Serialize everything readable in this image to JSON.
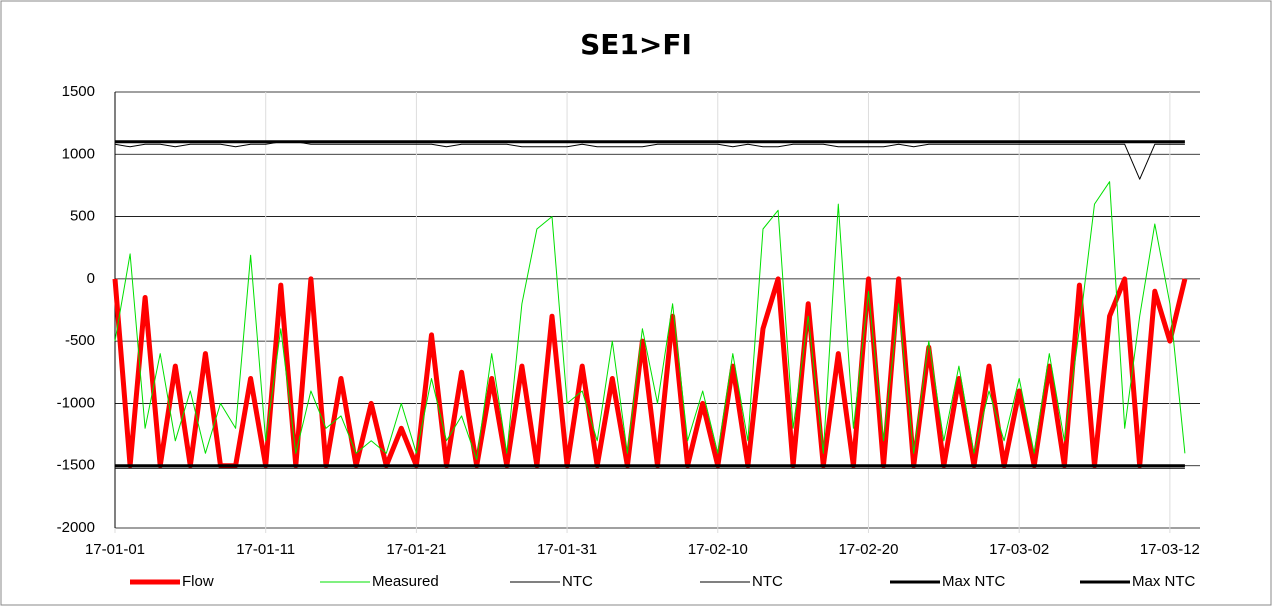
{
  "chart_data": {
    "type": "line",
    "title": "SE1>FI",
    "x": [
      "17-01-01",
      "17-01-02",
      "17-01-03",
      "17-01-04",
      "17-01-05",
      "17-01-06",
      "17-01-07",
      "17-01-08",
      "17-01-09",
      "17-01-10",
      "17-01-11",
      "17-01-12",
      "17-01-13",
      "17-01-14",
      "17-01-15",
      "17-01-16",
      "17-01-17",
      "17-01-18",
      "17-01-19",
      "17-01-20",
      "17-01-21",
      "17-01-22",
      "17-01-23",
      "17-01-24",
      "17-01-25",
      "17-01-26",
      "17-01-27",
      "17-01-28",
      "17-01-29",
      "17-01-30",
      "17-01-31",
      "17-02-01",
      "17-02-02",
      "17-02-03",
      "17-02-04",
      "17-02-05",
      "17-02-06",
      "17-02-07",
      "17-02-08",
      "17-02-09",
      "17-02-10",
      "17-02-11",
      "17-02-12",
      "17-02-13",
      "17-02-14",
      "17-02-15",
      "17-02-16",
      "17-02-17",
      "17-02-18",
      "17-02-19",
      "17-02-20",
      "17-02-21",
      "17-02-22",
      "17-02-23",
      "17-02-24",
      "17-02-25",
      "17-02-26",
      "17-02-27",
      "17-02-28",
      "17-03-01",
      "17-03-02",
      "17-03-03",
      "17-03-04",
      "17-03-05",
      "17-03-06",
      "17-03-07",
      "17-03-08",
      "17-03-09",
      "17-03-10",
      "17-03-11",
      "17-03-12",
      "17-03-13"
    ],
    "series": [
      {
        "name": "Flow",
        "color": "#ff0000",
        "linewidth": 5,
        "values": [
          0,
          -1500,
          -150,
          -1500,
          -700,
          -1500,
          -600,
          -1500,
          -1500,
          -800,
          -1500,
          -50,
          -1500,
          0,
          -1500,
          -800,
          -1500,
          -1000,
          -1500,
          -1200,
          -1500,
          -450,
          -1500,
          -750,
          -1500,
          -800,
          -1500,
          -700,
          -1500,
          -300,
          -1500,
          -700,
          -1500,
          -800,
          -1500,
          -500,
          -1500,
          -300,
          -1500,
          -1000,
          -1500,
          -700,
          -1500,
          -400,
          0,
          -1500,
          -200,
          -1500,
          -600,
          -1500,
          0,
          -1500,
          0,
          -1500,
          -550,
          -1500,
          -800,
          -1500,
          -700,
          -1500,
          -900,
          -1500,
          -700,
          -1500,
          -50,
          -1500,
          -300,
          0,
          -1500,
          -100,
          -500,
          0
        ]
      },
      {
        "name": "Measured",
        "color": "#00e000",
        "linewidth": 1,
        "values": [
          -500,
          200,
          -1200,
          -600,
          -1300,
          -900,
          -1400,
          -1000,
          -1200,
          190,
          -1300,
          -400,
          -1400,
          -900,
          -1200,
          -1100,
          -1400,
          -1300,
          -1400,
          -1000,
          -1400,
          -800,
          -1300,
          -1100,
          -1450,
          -600,
          -1400,
          -200,
          400,
          500,
          -1000,
          -900,
          -1300,
          -500,
          -1400,
          -400,
          -1000,
          -200,
          -1300,
          -900,
          -1400,
          -600,
          -1300,
          400,
          550,
          -1200,
          -300,
          -1400,
          600,
          -1200,
          -100,
          -1300,
          -200,
          -1400,
          -500,
          -1300,
          -700,
          -1400,
          -900,
          -1300,
          -800,
          -1400,
          -600,
          -1300,
          -400,
          600,
          780,
          -1200,
          -300,
          440,
          -200,
          -1400
        ]
      },
      {
        "name": "NTC",
        "color": "#000000",
        "linewidth": 1,
        "values": [
          1080,
          1060,
          1080,
          1080,
          1060,
          1080,
          1080,
          1080,
          1060,
          1080,
          1080,
          1100,
          1100,
          1080,
          1080,
          1080,
          1080,
          1080,
          1080,
          1080,
          1080,
          1080,
          1060,
          1080,
          1080,
          1080,
          1080,
          1060,
          1060,
          1060,
          1060,
          1080,
          1060,
          1060,
          1060,
          1060,
          1080,
          1080,
          1080,
          1080,
          1080,
          1060,
          1080,
          1060,
          1060,
          1080,
          1080,
          1080,
          1060,
          1060,
          1060,
          1060,
          1080,
          1060,
          1080,
          1080,
          1080,
          1080,
          1080,
          1080,
          1080,
          1080,
          1080,
          1080,
          1080,
          1080,
          1080,
          1080,
          800,
          1080,
          1080,
          1080
        ]
      },
      {
        "name": "NTC",
        "color": "#000000",
        "linewidth": 1,
        "values": [
          -1520,
          -1520,
          -1520,
          -1520,
          -1520,
          -1520,
          -1520,
          -1520,
          -1520,
          -1520,
          -1520,
          -1520,
          -1520,
          -1520,
          -1520,
          -1520,
          -1520,
          -1520,
          -1520,
          -1520,
          -1520,
          -1520,
          -1520,
          -1520,
          -1520,
          -1520,
          -1520,
          -1520,
          -1520,
          -1520,
          -1520,
          -1520,
          -1520,
          -1520,
          -1520,
          -1520,
          -1520,
          -1520,
          -1520,
          -1520,
          -1520,
          -1520,
          -1520,
          -1520,
          -1520,
          -1520,
          -1520,
          -1520,
          -1520,
          -1520,
          -1520,
          -1520,
          -1520,
          -1520,
          -1520,
          -1520,
          -1520,
          -1520,
          -1520,
          -1520,
          -1520,
          -1520,
          -1520,
          -1520,
          -1520,
          -1520,
          -1520,
          -1520,
          -1520,
          -1520,
          -1520,
          -1520
        ]
      },
      {
        "name": "Max NTC",
        "color": "#000000",
        "linewidth": 3,
        "values": [
          1100,
          1100,
          1100,
          1100,
          1100,
          1100,
          1100,
          1100,
          1100,
          1100,
          1100,
          1100,
          1100,
          1100,
          1100,
          1100,
          1100,
          1100,
          1100,
          1100,
          1100,
          1100,
          1100,
          1100,
          1100,
          1100,
          1100,
          1100,
          1100,
          1100,
          1100,
          1100,
          1100,
          1100,
          1100,
          1100,
          1100,
          1100,
          1100,
          1100,
          1100,
          1100,
          1100,
          1100,
          1100,
          1100,
          1100,
          1100,
          1100,
          1100,
          1100,
          1100,
          1100,
          1100,
          1100,
          1100,
          1100,
          1100,
          1100,
          1100,
          1100,
          1100,
          1100,
          1100,
          1100,
          1100,
          1100,
          1100,
          1100,
          1100,
          1100,
          1100
        ]
      },
      {
        "name": "Max NTC",
        "color": "#000000",
        "linewidth": 3,
        "values": [
          -1500,
          -1500,
          -1500,
          -1500,
          -1500,
          -1500,
          -1500,
          -1500,
          -1500,
          -1500,
          -1500,
          -1500,
          -1500,
          -1500,
          -1500,
          -1500,
          -1500,
          -1500,
          -1500,
          -1500,
          -1500,
          -1500,
          -1500,
          -1500,
          -1500,
          -1500,
          -1500,
          -1500,
          -1500,
          -1500,
          -1500,
          -1500,
          -1500,
          -1500,
          -1500,
          -1500,
          -1500,
          -1500,
          -1500,
          -1500,
          -1500,
          -1500,
          -1500,
          -1500,
          -1500,
          -1500,
          -1500,
          -1500,
          -1500,
          -1500,
          -1500,
          -1500,
          -1500,
          -1500,
          -1500,
          -1500,
          -1500,
          -1500,
          -1500,
          -1500,
          -1500,
          -1500,
          -1500,
          -1500,
          -1500,
          -1500,
          -1500,
          -1500,
          -1500,
          -1500,
          -1500,
          -1500
        ]
      }
    ],
    "xlim": [
      "17-01-01",
      "17-03-14"
    ],
    "xticks": [
      "17-01-01",
      "17-01-11",
      "17-01-21",
      "17-01-31",
      "17-02-10",
      "17-02-20",
      "17-03-02",
      "17-03-12"
    ],
    "ylim": [
      -2000,
      1500
    ],
    "yticks": [
      -2000,
      -1500,
      -1000,
      -500,
      0,
      500,
      1000,
      1500
    ],
    "grid": true,
    "legend": "bottom"
  }
}
